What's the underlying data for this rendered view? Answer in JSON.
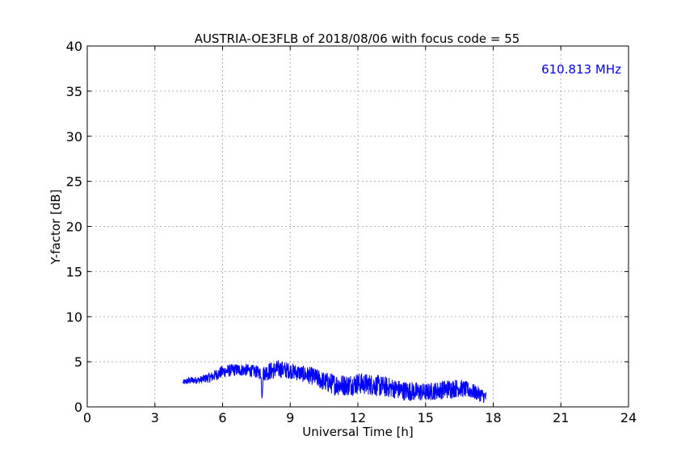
{
  "chart_data": {
    "type": "line",
    "title": "AUSTRIA-OE3FLB of 2018/08/06 with focus code = 55",
    "xlabel": "Universal Time [h]",
    "ylabel": "Y-factor [dB]",
    "xlim": [
      0,
      24
    ],
    "ylim": [
      0,
      40
    ],
    "xticks": [
      "0",
      "3",
      "6",
      "9",
      "12",
      "15",
      "18",
      "21",
      "24"
    ],
    "yticks": [
      "0",
      "5",
      "10",
      "15",
      "20",
      "25",
      "30",
      "35",
      "40"
    ],
    "grid": true,
    "annotation": {
      "text": "610.813 MHz",
      "color": "#0000ff",
      "placement": "top-right"
    },
    "series": [
      {
        "color": "#0000ff",
        "x": [
          4.25,
          4.5,
          5.0,
          5.5,
          6.0,
          6.5,
          7.0,
          7.5,
          7.7,
          7.75,
          7.8,
          8.0,
          8.5,
          9.0,
          9.5,
          10.0,
          10.5,
          11.0,
          11.5,
          12.0,
          12.5,
          13.0,
          13.5,
          14.0,
          14.5,
          15.0,
          15.5,
          16.0,
          16.5,
          17.0,
          17.5,
          17.7
        ],
        "y": [
          2.7,
          2.9,
          3.0,
          3.3,
          3.9,
          4.1,
          4.1,
          3.9,
          3.7,
          0.8,
          3.7,
          3.9,
          4.2,
          4.0,
          3.7,
          3.4,
          2.8,
          2.5,
          2.4,
          2.6,
          2.5,
          2.3,
          2.1,
          1.8,
          1.7,
          1.6,
          1.8,
          2.0,
          2.1,
          1.8,
          1.3,
          1.0
        ],
        "noise_db": [
          0.3,
          0.4,
          0.4,
          0.6,
          0.7,
          0.7,
          0.7,
          0.7,
          0.7,
          0,
          0.8,
          1.0,
          1.0,
          0.9,
          0.9,
          1.0,
          1.1,
          1.2,
          1.2,
          1.2,
          1.2,
          1.2,
          1.1,
          1.1,
          1.1,
          1.0,
          1.0,
          1.1,
          1.0,
          0.9,
          0.8,
          0.7
        ]
      }
    ]
  }
}
